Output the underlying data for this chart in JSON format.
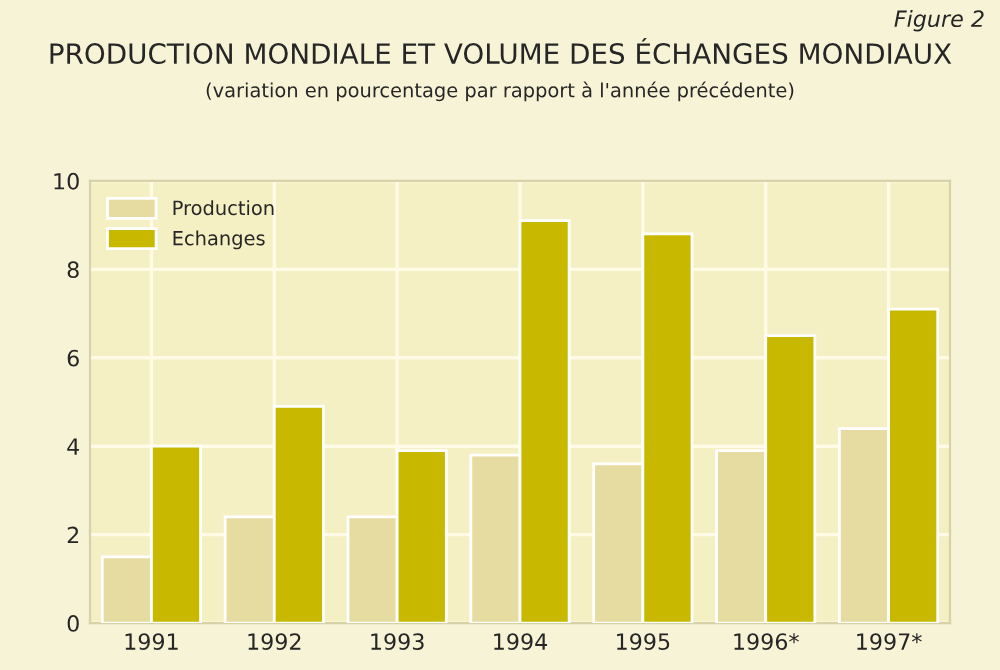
{
  "chart_data": {
    "type": "bar",
    "title": "PRODUCTION MONDIALE ET VOLUME DES ÉCHANGES MONDIAUX",
    "subtitle": "(variation en pourcentage par rapport à l'année précédente)",
    "annotations": [
      "Figure 2"
    ],
    "categories": [
      "1991",
      "1992",
      "1993",
      "1994",
      "1995",
      "1996*",
      "1997*"
    ],
    "series": [
      {
        "name": "Production",
        "color": "#e6dba0",
        "values": [
          1.5,
          2.4,
          2.4,
          3.8,
          3.6,
          3.9,
          4.4
        ]
      },
      {
        "name": "Echanges",
        "color": "#c9b800",
        "values": [
          4.0,
          4.9,
          3.9,
          9.1,
          8.8,
          6.5,
          7.1
        ]
      }
    ],
    "ylim": [
      0,
      10
    ],
    "yticks": [
      0,
      2,
      4,
      6,
      8,
      10
    ],
    "grid": true,
    "legend": "top left"
  }
}
